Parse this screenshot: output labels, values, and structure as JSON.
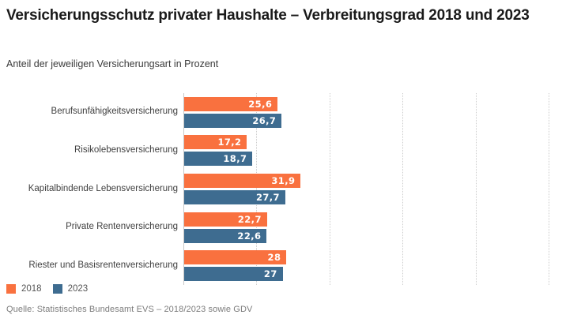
{
  "header": {
    "title": "Versicherungsschutz privater Haushalte – Verbreitungsgrad 2018 und 2023",
    "subtitle": "Anteil der jeweiligen Versicherungsart in Prozent"
  },
  "chart_data": {
    "type": "bar",
    "orientation": "horizontal",
    "title": "Versicherungsschutz privater Haushalte – Verbreitungsgrad 2018 und 2023",
    "subtitle": "Anteil der jeweiligen Versicherungsart in Prozent",
    "categories": [
      "Berufsunfähigkeitsversicherung",
      "Risikolebensversicherung",
      "Kapitalbindende Lebensversicherung",
      "Private Rentenversicherung",
      "Riester und Basisrentenversicherung"
    ],
    "series": [
      {
        "name": "2018",
        "color": "#f9713f",
        "values": [
          25.6,
          17.2,
          31.9,
          22.7,
          28
        ],
        "labels": [
          "25,6",
          "17,2",
          "31,9",
          "22,7",
          "28"
        ]
      },
      {
        "name": "2023",
        "color": "#3e6c90",
        "values": [
          26.7,
          18.7,
          27.7,
          22.6,
          27
        ],
        "labels": [
          "26,7",
          "18,7",
          "27,7",
          "22,6",
          "27"
        ]
      }
    ],
    "xlabel": "",
    "ylabel": "",
    "xlim": [
      0,
      100
    ],
    "gridlines": [
      20,
      40,
      60,
      80,
      100
    ],
    "grid_on": true,
    "grid_style": "dotted",
    "legend_position": "bottom-left",
    "value_label_position": "inside-end",
    "unit": "Prozent"
  },
  "legend": {
    "items": [
      {
        "label": "2018",
        "color": "#f9713f"
      },
      {
        "label": "2023",
        "color": "#3e6c90"
      }
    ]
  },
  "footer": {
    "source": "Quelle: Statistisches Bundesamt EVS – 2018/2023 sowie GDV"
  },
  "colors": {
    "series_2018": "#f9713f",
    "series_2023": "#3e6c90",
    "grid": "#cccccc",
    "axis": "#c8c8c8",
    "title_text": "#1a1a1a",
    "label_text": "#404040",
    "source_text": "#7c7c7c"
  }
}
